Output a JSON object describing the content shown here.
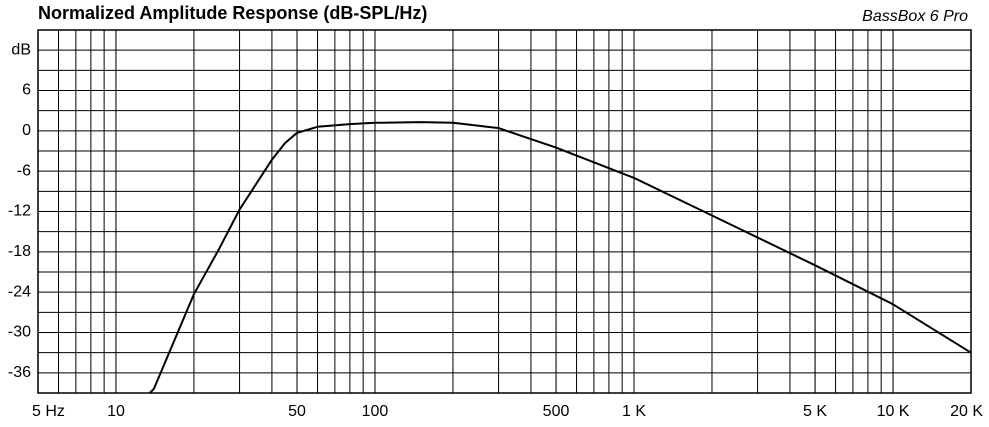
{
  "chart_data": {
    "type": "line",
    "title": "Normalized Amplitude Response (dB-SPL/Hz)",
    "brand": "BassBox 6 Pro",
    "xscale": "log",
    "xlim": [
      5,
      20000
    ],
    "xticks": [
      {
        "value": 5,
        "label": "5 Hz"
      },
      10,
      50,
      100,
      500,
      {
        "value": 1000,
        "label": "1 K"
      },
      {
        "value": 5000,
        "label": "5 K"
      },
      {
        "value": 10000,
        "label": "10 K"
      },
      {
        "value": 20000,
        "label": "20 K"
      }
    ],
    "ylim": [
      -39,
      15
    ],
    "yticks": [
      {
        "value": 12,
        "label": "dB"
      },
      6,
      0,
      -6,
      -12,
      -18,
      -24,
      -30,
      -36
    ],
    "grid": true,
    "minor_grid": true,
    "series": [
      {
        "color": "#000000",
        "x": [
          13.5,
          14,
          20,
          25,
          30,
          40,
          45,
          50,
          60,
          80,
          100,
          150,
          200,
          300,
          500,
          1000,
          2000,
          5000,
          10000,
          20000
        ],
        "values": [
          -39,
          -38.4,
          -24.3,
          -17.6,
          -11.7,
          -4.3,
          -1.8,
          -0.3,
          0.6,
          1.0,
          1.2,
          1.3,
          1.2,
          0.4,
          -2.5,
          -7.0,
          -12.6,
          -20.0,
          -25.8,
          -33.0
        ]
      }
    ]
  }
}
